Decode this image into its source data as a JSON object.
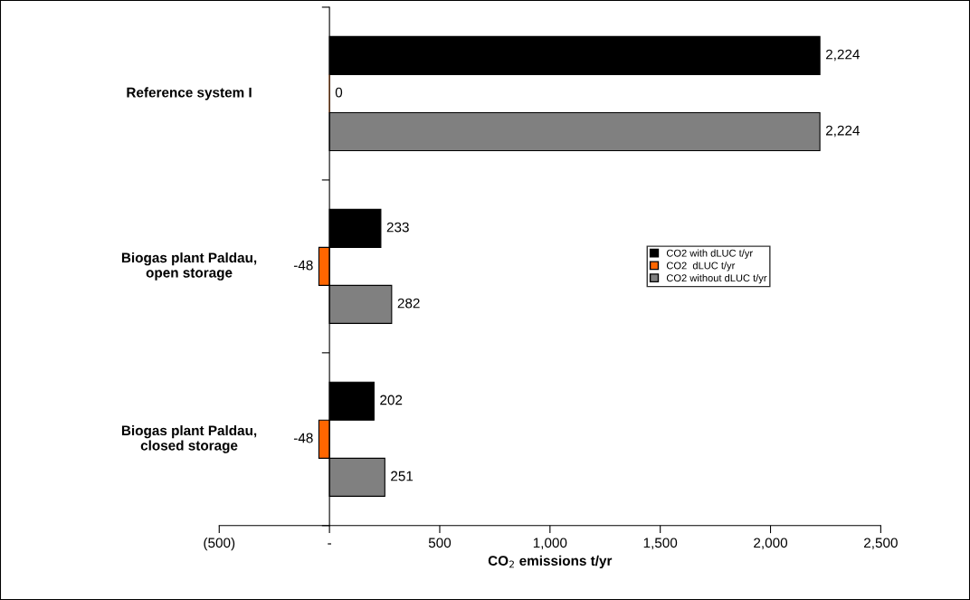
{
  "chart_data": {
    "type": "bar",
    "orientation": "horizontal",
    "categories": [
      "Reference system I",
      "Biogas plant Paldau,\nopen storage",
      "Biogas plant Paldau,\nclosed storage"
    ],
    "series": [
      {
        "name": "CO2 with dLUC t/yr",
        "color": "#000000",
        "values": [
          2224,
          233,
          202
        ],
        "value_labels": [
          "2,224",
          "233",
          "202"
        ]
      },
      {
        "name": "CO2  dLUC t/yr",
        "color": "#ff6600",
        "values": [
          0,
          -48,
          -48
        ],
        "value_labels": [
          "0",
          "-48",
          "-48"
        ]
      },
      {
        "name": "CO2 without dLUC t/yr",
        "color": "#808080",
        "values": [
          2224,
          282,
          251
        ],
        "value_labels": [
          "2,224",
          "282",
          "251"
        ]
      }
    ],
    "xlabel": "CO$_{2}$ emissions t/yr",
    "xlim": [
      -500,
      2500
    ],
    "xticks": [
      {
        "value": -500,
        "label": "(500)"
      },
      {
        "value": 0,
        "label": "-"
      },
      500,
      {
        "value": 1000,
        "label": "1,000"
      },
      {
        "value": 1500,
        "label": "1,500"
      },
      {
        "value": 2000,
        "label": "2,000"
      },
      {
        "value": 2500,
        "label": "2,500"
      }
    ],
    "legend": "right"
  }
}
